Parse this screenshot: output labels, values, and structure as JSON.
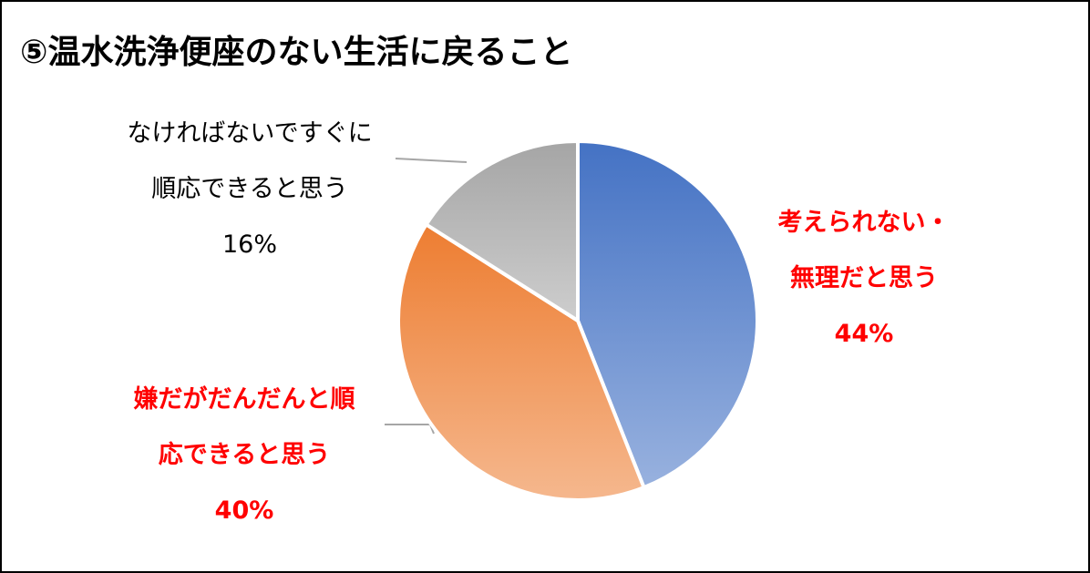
{
  "chart_data": {
    "type": "pie",
    "title": "⑤温水洗浄便座のない生活に戻ること",
    "categories": [
      "考えられない・無理だと思う",
      "嫌だがだんだんと順応できると思う",
      "なければないですぐに順応できると思う"
    ],
    "values": [
      44,
      40,
      16
    ],
    "value_labels": [
      "44%",
      "40%",
      "16%"
    ],
    "colors": [
      "#4472c4",
      "#ed7d31",
      "#a5a5a5"
    ],
    "label_colors": [
      "#ff0000",
      "#ff0000",
      "#000000"
    ]
  }
}
